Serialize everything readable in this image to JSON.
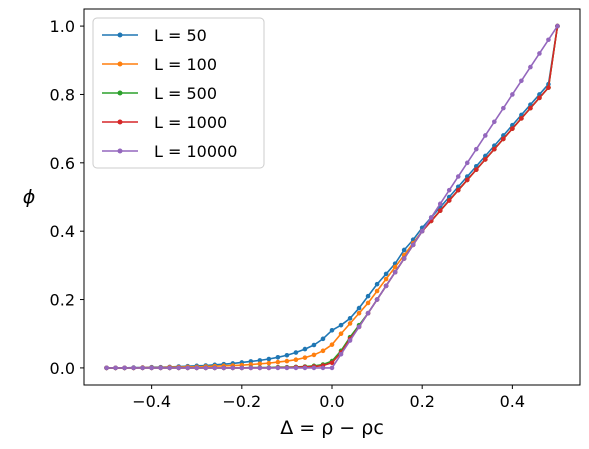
{
  "chart_data": {
    "type": "line",
    "xlabel": "Δ = ρ − ρc",
    "ylabel": "ϕ",
    "xlim": [
      -0.55,
      0.55
    ],
    "ylim": [
      -0.05,
      1.05
    ],
    "x_ticks": [
      -0.4,
      -0.2,
      0.0,
      0.2,
      0.4
    ],
    "x_tick_labels": [
      "−0.4",
      "−0.2",
      "0.0",
      "0.2",
      "0.4"
    ],
    "y_ticks": [
      0.0,
      0.2,
      0.4,
      0.6,
      0.8,
      1.0
    ],
    "y_tick_labels": [
      "0.0",
      "0.2",
      "0.4",
      "0.6",
      "0.8",
      "1.0"
    ],
    "grid": false,
    "legend_position": "top-left",
    "x": [
      -0.5,
      -0.48,
      -0.46,
      -0.44,
      -0.42,
      -0.4,
      -0.38,
      -0.36,
      -0.34,
      -0.32,
      -0.3,
      -0.28,
      -0.26,
      -0.24,
      -0.22,
      -0.2,
      -0.18,
      -0.16,
      -0.14,
      -0.12,
      -0.1,
      -0.08,
      -0.06,
      -0.04,
      -0.02,
      0.0,
      0.02,
      0.04,
      0.06,
      0.08,
      0.1,
      0.12,
      0.14,
      0.16,
      0.18,
      0.2,
      0.22,
      0.24,
      0.26,
      0.28,
      0.3,
      0.32,
      0.34,
      0.36,
      0.38,
      0.4,
      0.42,
      0.44,
      0.46,
      0.48,
      0.5
    ],
    "series": [
      {
        "name": "L = 50",
        "color": "#1f77b4",
        "values": [
          0.0,
          0.0,
          0.0,
          0.001,
          0.001,
          0.002,
          0.002,
          0.003,
          0.004,
          0.005,
          0.006,
          0.007,
          0.009,
          0.011,
          0.013,
          0.016,
          0.019,
          0.022,
          0.026,
          0.031,
          0.037,
          0.045,
          0.055,
          0.067,
          0.085,
          0.11,
          0.125,
          0.145,
          0.175,
          0.21,
          0.245,
          0.275,
          0.305,
          0.345,
          0.375,
          0.41,
          0.44,
          0.47,
          0.5,
          0.53,
          0.56,
          0.59,
          0.62,
          0.65,
          0.68,
          0.71,
          0.74,
          0.77,
          0.8,
          0.83,
          1.0
        ]
      },
      {
        "name": "L = 100",
        "color": "#ff7f0e",
        "values": [
          0.0,
          0.0,
          0.0,
          0.0,
          0.001,
          0.001,
          0.001,
          0.002,
          0.002,
          0.003,
          0.003,
          0.004,
          0.005,
          0.006,
          0.007,
          0.008,
          0.01,
          0.012,
          0.014,
          0.017,
          0.02,
          0.024,
          0.03,
          0.038,
          0.05,
          0.068,
          0.1,
          0.13,
          0.16,
          0.19,
          0.225,
          0.26,
          0.295,
          0.33,
          0.365,
          0.4,
          0.43,
          0.46,
          0.49,
          0.52,
          0.55,
          0.58,
          0.61,
          0.64,
          0.67,
          0.7,
          0.73,
          0.76,
          0.79,
          0.82,
          1.0
        ]
      },
      {
        "name": "L = 500",
        "color": "#2ca02c",
        "values": [
          0.0,
          0.0,
          0.0,
          0.0,
          0.0,
          0.0,
          0.0,
          0.0,
          0.0,
          0.0,
          0.0,
          0.0,
          0.0,
          0.0,
          0.0,
          0.0,
          0.001,
          0.001,
          0.001,
          0.002,
          0.002,
          0.003,
          0.004,
          0.006,
          0.01,
          0.02,
          0.05,
          0.09,
          0.125,
          0.16,
          0.2,
          0.24,
          0.28,
          0.32,
          0.36,
          0.4,
          0.43,
          0.46,
          0.49,
          0.52,
          0.55,
          0.58,
          0.61,
          0.64,
          0.67,
          0.7,
          0.73,
          0.76,
          0.79,
          0.82,
          1.0
        ]
      },
      {
        "name": "L = 1000",
        "color": "#d62728",
        "values": [
          0.0,
          0.0,
          0.0,
          0.0,
          0.0,
          0.0,
          0.0,
          0.0,
          0.0,
          0.0,
          0.0,
          0.0,
          0.0,
          0.0,
          0.0,
          0.0,
          0.0,
          0.0,
          0.0,
          0.001,
          0.001,
          0.002,
          0.003,
          0.004,
          0.007,
          0.015,
          0.045,
          0.085,
          0.12,
          0.16,
          0.2,
          0.24,
          0.28,
          0.32,
          0.36,
          0.4,
          0.43,
          0.46,
          0.49,
          0.52,
          0.55,
          0.58,
          0.61,
          0.64,
          0.67,
          0.7,
          0.73,
          0.76,
          0.79,
          0.82,
          1.0
        ]
      },
      {
        "name": "L = 10000",
        "color": "#9467bd",
        "values": [
          0.0,
          0.0,
          0.0,
          0.0,
          0.0,
          0.0,
          0.0,
          0.0,
          0.0,
          0.0,
          0.0,
          0.0,
          0.0,
          0.0,
          0.0,
          0.0,
          0.0,
          0.0,
          0.0,
          0.0,
          0.0,
          0.0,
          0.0,
          0.0,
          0.0,
          0.0,
          0.04,
          0.08,
          0.12,
          0.16,
          0.2,
          0.24,
          0.28,
          0.32,
          0.36,
          0.4,
          0.44,
          0.48,
          0.52,
          0.56,
          0.6,
          0.64,
          0.68,
          0.72,
          0.76,
          0.8,
          0.84,
          0.88,
          0.92,
          0.96,
          1.0
        ]
      }
    ]
  }
}
